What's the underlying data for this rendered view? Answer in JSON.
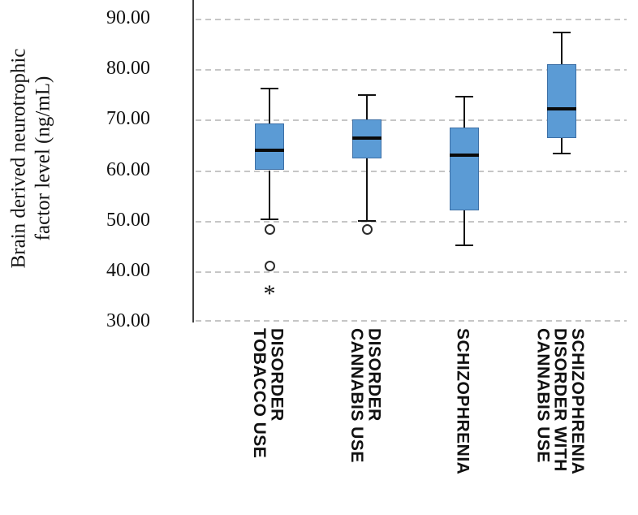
{
  "chart_data": {
    "type": "boxplot",
    "title": "",
    "ylabel": "Brain derived neurotrophic\nfactor level (ng/mL)",
    "xlabel": "",
    "ylim": [
      30,
      93.7
    ],
    "yticks": [
      90,
      80,
      70,
      60,
      50,
      40,
      30
    ],
    "ytick_labels": [
      "90.00",
      "80.00",
      "70.00",
      "60.00",
      "50.00",
      "40.00",
      "30.00"
    ],
    "grid": "horizontal-dashed",
    "legend": "none",
    "colors": {
      "box_fill": "#5b9bd5",
      "box_stroke": "#3d6fa5",
      "line": "#111111",
      "grid": "#c6c6c6"
    },
    "categories": [
      {
        "label": "TOBACCO USE\nDISORDER",
        "whisker_low": 50.3,
        "q1": 60.0,
        "median": 64.0,
        "q3": 69.3,
        "whisker_high": 76.2,
        "outliers": [
          48.2,
          41.0
        ],
        "extremes": [
          36.3
        ]
      },
      {
        "label": "CANNABIS USE\nDISORDER",
        "whisker_low": 50.0,
        "q1": 62.4,
        "median": 66.3,
        "q3": 70.0,
        "whisker_high": 74.8,
        "outliers": [
          48.2
        ],
        "extremes": []
      },
      {
        "label": "SCHIZOPHRENIA",
        "whisker_low": 45.2,
        "q1": 52.0,
        "median": 63.0,
        "q3": 68.5,
        "whisker_high": 74.5,
        "outliers": [],
        "extremes": []
      },
      {
        "label": "CANNABIS USE\nDISORDER WITH\nSCHIZOPHRENIA",
        "whisker_low": 63.3,
        "q1": 66.3,
        "median": 72.2,
        "q3": 81.0,
        "whisker_high": 87.2,
        "outliers": [],
        "extremes": []
      }
    ]
  }
}
